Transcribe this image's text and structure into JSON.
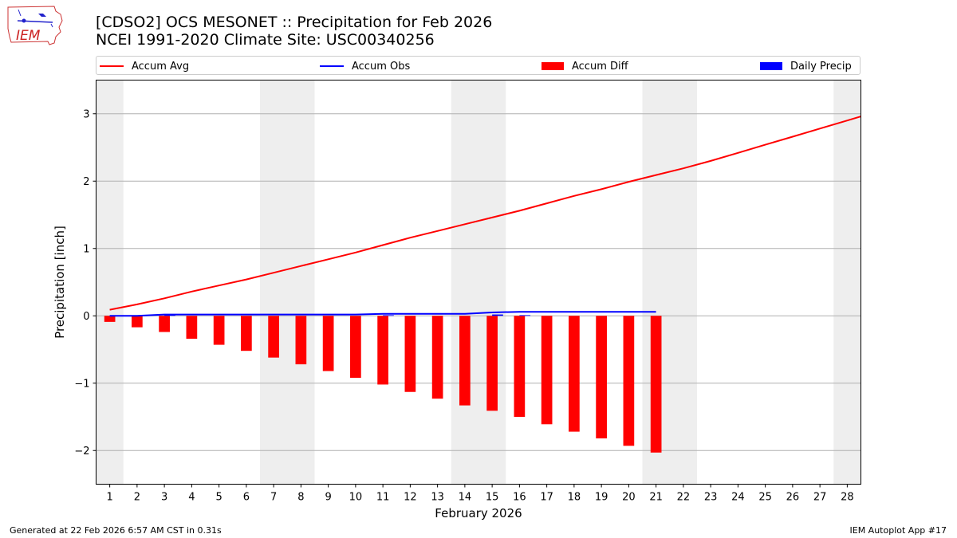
{
  "header": {
    "logo_text": "IEM",
    "title_line1": "[CDSO2] OCS MESONET :: Precipitation for Feb 2026",
    "title_line2": "NCEI 1991-2020 Climate Site: USC00340256"
  },
  "footer": {
    "generated": "Generated at 22 Feb 2026 6:57 AM CST in 0.31s",
    "app": "IEM Autoplot App #17"
  },
  "colors": {
    "accum_avg": "#ff0000",
    "accum_obs": "#0000ff",
    "accum_diff": "#ff0000",
    "daily_precip": "#0000ff",
    "weekend_shade": "#eeeeee",
    "grid": "#b0b0b0"
  },
  "chart_data": {
    "type": "bar",
    "title": "[CDSO2] OCS MESONET :: Precipitation for Feb 2026",
    "subtitle": "NCEI 1991-2020 Climate Site: USC00340256",
    "xlabel": "February 2026",
    "ylabel": "Precipitation [inch]",
    "xlim": [
      0.5,
      28.5
    ],
    "ylim": [
      -2.5,
      3.5
    ],
    "yticks": [
      -2,
      -1,
      0,
      1,
      2,
      3
    ],
    "ytick_labels": [
      "−2",
      "−1",
      "0",
      "1",
      "2",
      "3"
    ],
    "categories": [
      "1",
      "2",
      "3",
      "4",
      "5",
      "6",
      "7",
      "8",
      "9",
      "10",
      "11",
      "12",
      "13",
      "14",
      "15",
      "16",
      "17",
      "18",
      "19",
      "20",
      "21",
      "22",
      "23",
      "24",
      "25",
      "26",
      "27",
      "28"
    ],
    "grid": "y",
    "legend_position": "top",
    "weekend_spans": [
      [
        0.5,
        1.5
      ],
      [
        6.5,
        8.5
      ],
      [
        13.5,
        15.5
      ],
      [
        20.5,
        22.5
      ],
      [
        27.5,
        28.5
      ]
    ],
    "series": [
      {
        "name": "Accum Avg",
        "kind": "line",
        "x": [
          1,
          2,
          3,
          4,
          5,
          6,
          7,
          8,
          9,
          10,
          11,
          12,
          13,
          14,
          15,
          16,
          17,
          18,
          19,
          20,
          21,
          22,
          23,
          24,
          25,
          26,
          27,
          28,
          28.5
        ],
        "values": [
          0.09,
          0.17,
          0.26,
          0.36,
          0.45,
          0.54,
          0.64,
          0.74,
          0.84,
          0.94,
          1.05,
          1.16,
          1.26,
          1.36,
          1.46,
          1.56,
          1.67,
          1.78,
          1.88,
          1.99,
          2.09,
          2.19,
          2.3,
          2.42,
          2.54,
          2.66,
          2.78,
          2.9,
          2.96
        ]
      },
      {
        "name": "Accum Obs",
        "kind": "line",
        "x": [
          1,
          2,
          3,
          4,
          5,
          6,
          7,
          8,
          9,
          10,
          11,
          12,
          13,
          14,
          15,
          16,
          17,
          18,
          19,
          20,
          21
        ],
        "values": [
          0.0,
          0.0,
          0.02,
          0.02,
          0.02,
          0.02,
          0.02,
          0.02,
          0.02,
          0.02,
          0.03,
          0.03,
          0.03,
          0.03,
          0.05,
          0.06,
          0.06,
          0.06,
          0.06,
          0.06,
          0.06
        ]
      },
      {
        "name": "Accum Diff",
        "kind": "bar",
        "x": [
          1,
          2,
          3,
          4,
          5,
          6,
          7,
          8,
          9,
          10,
          11,
          12,
          13,
          14,
          15,
          16,
          17,
          18,
          19,
          20,
          21
        ],
        "values": [
          -0.09,
          -0.17,
          -0.24,
          -0.34,
          -0.43,
          -0.52,
          -0.62,
          -0.72,
          -0.82,
          -0.92,
          -1.02,
          -1.13,
          -1.23,
          -1.33,
          -1.41,
          -1.5,
          -1.61,
          -1.72,
          -1.82,
          -1.93,
          -2.03
        ]
      },
      {
        "name": "Daily Precip",
        "kind": "bar",
        "x": [
          1,
          2,
          3,
          4,
          5,
          6,
          7,
          8,
          9,
          10,
          11,
          12,
          13,
          14,
          15,
          16,
          17,
          18,
          19,
          20,
          21
        ],
        "values": [
          0,
          0,
          0.02,
          0,
          0,
          0,
          0,
          0,
          0,
          0,
          0.01,
          0,
          0,
          0,
          0.02,
          0.01,
          0,
          0,
          0,
          0,
          0
        ]
      }
    ]
  }
}
